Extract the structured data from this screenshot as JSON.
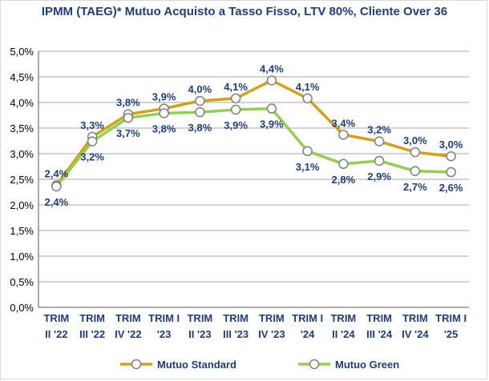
{
  "chart_data": {
    "type": "line",
    "title": "IPMM (TAEG)* Mutuo Acquisto a Tasso Fisso, LTV 80%,  Cliente Over 36",
    "categories": [
      [
        "TRIM",
        "II '22"
      ],
      [
        "TRIM",
        "III '22"
      ],
      [
        "TRIM",
        "IV '22"
      ],
      [
        "TRIM I",
        "'23"
      ],
      [
        "TRIM",
        "II '23"
      ],
      [
        "TRIM",
        "III '23"
      ],
      [
        "TRIM",
        "IV '23"
      ],
      [
        "TRIM I",
        "'24"
      ],
      [
        "TRIM",
        "II '24"
      ],
      [
        "TRIM",
        "III '24"
      ],
      [
        "TRIM",
        "IV '24"
      ],
      [
        "TRIM I",
        "'25"
      ]
    ],
    "series": [
      {
        "name": "Mutuo Standard",
        "color": "#d4a017",
        "values": [
          2.4,
          3.3,
          3.8,
          3.9,
          4.0,
          4.1,
          4.4,
          4.1,
          3.4,
          3.2,
          3.0,
          3.0
        ],
        "plot_values": [
          2.38,
          3.33,
          3.77,
          3.88,
          4.03,
          4.08,
          4.43,
          4.08,
          3.37,
          3.24,
          3.03,
          2.95
        ],
        "labels": [
          "2,4%",
          "3,3%",
          "3,8%",
          "3,9%",
          "4,0%",
          "4,1%",
          "4,4%",
          "4,1%",
          "3,4%",
          "3,2%",
          "3,0%",
          "3,0%"
        ]
      },
      {
        "name": "Mutuo Green",
        "color": "#92d050",
        "values": [
          2.4,
          3.2,
          3.7,
          3.8,
          3.8,
          3.9,
          3.9,
          3.1,
          2.8,
          2.9,
          2.7,
          2.6
        ],
        "plot_values": [
          2.36,
          3.24,
          3.7,
          3.79,
          3.81,
          3.86,
          3.88,
          3.05,
          2.8,
          2.86,
          2.66,
          2.64
        ],
        "labels": [
          "2,4%",
          "3,2%",
          "3,7%",
          "3,8%",
          "3,8%",
          "3,9%",
          "3,9%",
          "3,1%",
          "2,8%",
          "2,9%",
          "2,7%",
          "2,6%"
        ]
      }
    ],
    "ylim": [
      0,
      5
    ],
    "yticks": [
      "0,0%",
      "0,5%",
      "1,0%",
      "1,5%",
      "2,0%",
      "2,5%",
      "3,0%",
      "3,5%",
      "4,0%",
      "4,5%",
      "5,0%"
    ],
    "grid": true,
    "legend": "bottom"
  }
}
